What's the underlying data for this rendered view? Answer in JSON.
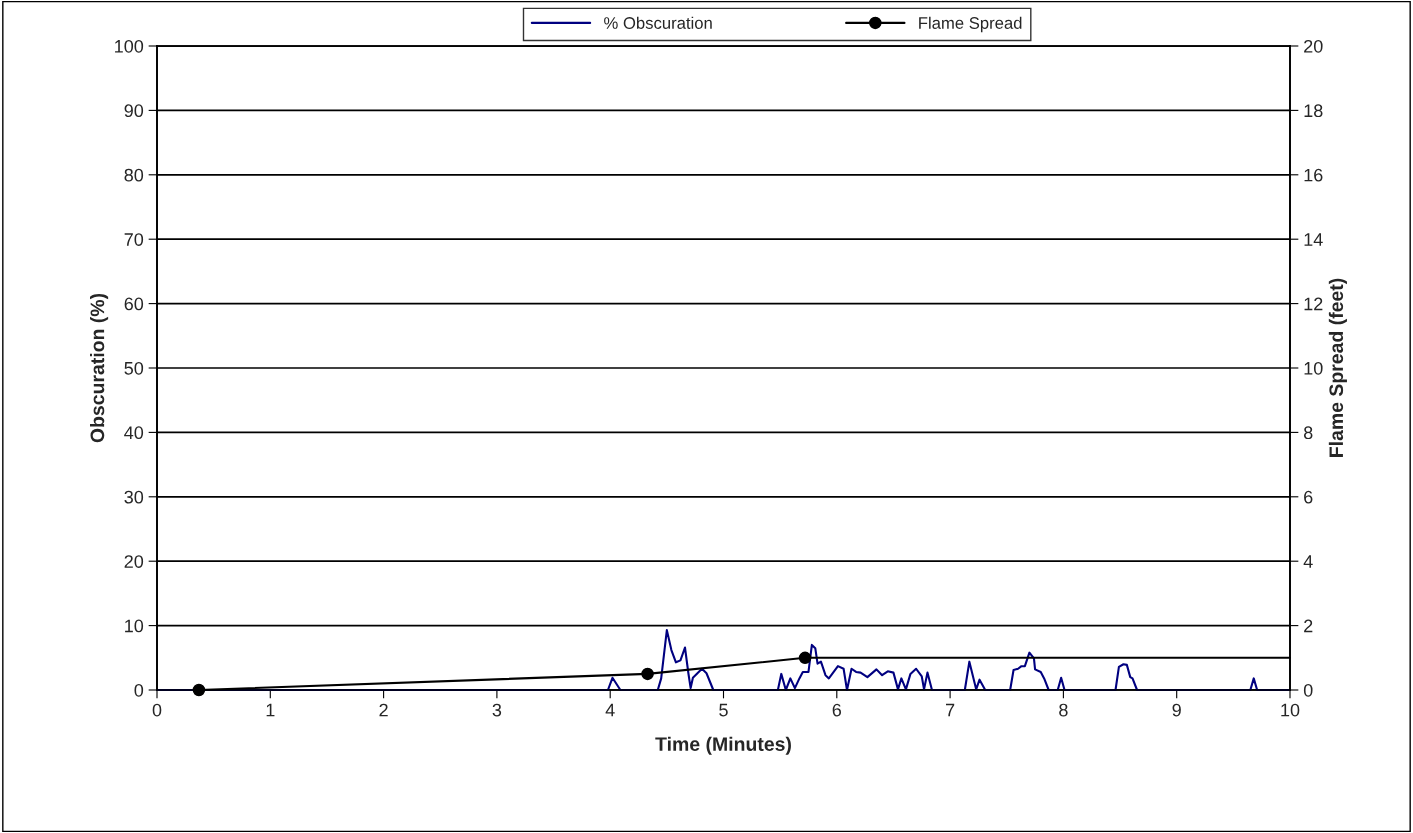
{
  "chart_data": {
    "type": "line",
    "xlabel": "Time (Minutes)",
    "ylabel": "Obscuration (%)",
    "y2label": "Flame Spread (feet)",
    "xlim": [
      0,
      10
    ],
    "xticks": [
      0,
      1,
      2,
      3,
      4,
      5,
      6,
      7,
      8,
      9,
      10
    ],
    "ylim": [
      0,
      100
    ],
    "yticks": [
      0,
      10,
      20,
      30,
      40,
      50,
      60,
      70,
      80,
      90,
      100
    ],
    "y2lim": [
      0,
      20
    ],
    "y2ticks": [
      0,
      2,
      4,
      6,
      8,
      10,
      12,
      14,
      16,
      18,
      20
    ],
    "grid": "y",
    "legend": "top",
    "series": [
      {
        "name": "% Obscuration",
        "color": "#000080",
        "marker": "none",
        "x": [
          0,
          3.98,
          4.02,
          4.09,
          4.42,
          4.45,
          4.5,
          4.54,
          4.58,
          4.62,
          4.66,
          4.69,
          4.71,
          4.73,
          4.81,
          4.85,
          4.91,
          5.48,
          5.51,
          5.55,
          5.59,
          5.63,
          5.67,
          5.7,
          5.75,
          5.78,
          5.81,
          5.83,
          5.86,
          5.9,
          5.93,
          6.01,
          6.06,
          6.09,
          6.13,
          6.17,
          6.21,
          6.27,
          6.35,
          6.4,
          6.45,
          6.5,
          6.54,
          6.57,
          6.61,
          6.65,
          6.7,
          6.75,
          6.77,
          6.8,
          6.84,
          7.13,
          7.17,
          7.23,
          7.26,
          7.31,
          7.53,
          7.56,
          7.6,
          7.63,
          7.66,
          7.7,
          7.74,
          7.75,
          7.8,
          7.83,
          7.87,
          7.95,
          7.98,
          8.01,
          8.46,
          8.49,
          8.53,
          8.56,
          8.59,
          8.61,
          8.65,
          9.65,
          9.68,
          9.71,
          10
        ],
        "values": [
          0,
          0,
          1.9,
          0,
          0,
          1.8,
          9.3,
          6.2,
          4.3,
          4.6,
          6.6,
          2.6,
          0.3,
          1.9,
          3.3,
          2.6,
          0,
          0,
          2.5,
          0,
          1.8,
          0.3,
          1.8,
          2.8,
          2.8,
          7.0,
          6.5,
          4.1,
          4.4,
          2.3,
          1.8,
          3.7,
          3.3,
          0,
          3.3,
          2.8,
          2.7,
          2.0,
          3.2,
          2.3,
          2.9,
          2.7,
          0.1,
          1.8,
          0.1,
          2.5,
          3.3,
          2.1,
          0.1,
          2.7,
          0,
          0,
          4.4,
          0.1,
          1.6,
          0,
          0,
          3.1,
          3.3,
          3.7,
          3.7,
          5.8,
          4.9,
          3.2,
          2.8,
          1.8,
          0,
          0,
          1.9,
          0,
          0,
          3.6,
          4.0,
          3.9,
          2.0,
          1.8,
          0,
          0,
          1.8,
          0,
          0
        ]
      },
      {
        "name": "Flame Spread",
        "color": "#000000",
        "marker": "circle",
        "axis": "y2",
        "x": [
          0.37,
          4.33,
          5.72
        ],
        "values": [
          0,
          0.5,
          1
        ]
      },
      {
        "color": "#000000",
        "marker": "none",
        "axis": "y2",
        "x": [
          5.72,
          10
        ],
        "values": [
          1,
          1
        ]
      }
    ]
  }
}
